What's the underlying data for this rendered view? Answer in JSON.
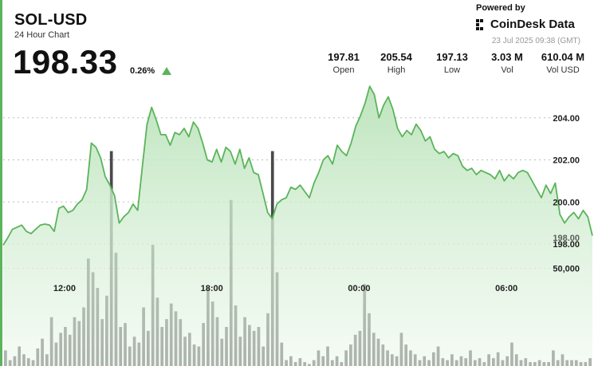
{
  "header": {
    "title": "SOL-USD",
    "subtitle": "24 Hour Chart",
    "price": "198.33",
    "change": "0.26%",
    "change_icon": "triangle-up-icon"
  },
  "branding": {
    "powered_by": "Powered by",
    "brand": "CoinDesk Data",
    "brand_icon": "coindesk-logo-icon",
    "timestamp": "23 Jul 2025 09:38 (GMT)"
  },
  "stats": [
    {
      "value": "197.81",
      "label": "Open"
    },
    {
      "value": "205.54",
      "label": "High"
    },
    {
      "value": "197.13",
      "label": "Low"
    },
    {
      "value": "3.03 M",
      "label": "Vol"
    },
    {
      "value": "610.04 M",
      "label": "Vol USD"
    }
  ],
  "colors": {
    "accent": "#5bb45b",
    "line": "#5bb45b",
    "area_top": "#b9e3b9",
    "volume": "#4a4a4a"
  },
  "chart_data": {
    "type": "area",
    "xlabel": "",
    "ylabel": "",
    "x_ticks": [
      "12:00",
      "18:00",
      "00:00",
      "06:00"
    ],
    "x_tick_hours": [
      2.5,
      8.5,
      14.5,
      20.5
    ],
    "x_range_hours": [
      0,
      24
    ],
    "y_ticks": [
      "204.00",
      "202.00",
      "200.00",
      "198.00"
    ],
    "y_tick_values": [
      204,
      202,
      200,
      198
    ],
    "ylim": [
      195.5,
      206
    ],
    "current_price_label": "198.00",
    "volume_tick": "50,000",
    "volume_tick_value": 50000,
    "volume_max": 120000,
    "grid": true,
    "price_series": {
      "name": "SOL-USD",
      "values": [
        197.95,
        198.3,
        198.7,
        198.8,
        198.9,
        198.6,
        198.5,
        198.7,
        198.9,
        198.95,
        198.9,
        198.6,
        199.7,
        199.8,
        199.5,
        199.6,
        199.9,
        200.1,
        200.6,
        202.8,
        202.6,
        202.1,
        201.2,
        200.8,
        200.3,
        199.0,
        199.3,
        199.5,
        199.9,
        199.6,
        201.7,
        203.7,
        204.5,
        203.9,
        203.2,
        203.2,
        202.7,
        203.3,
        203.2,
        203.5,
        203.1,
        203.8,
        203.5,
        202.8,
        202.0,
        201.9,
        202.5,
        201.9,
        202.6,
        202.4,
        201.8,
        202.5,
        201.6,
        202.1,
        201.4,
        201.3,
        200.4,
        199.5,
        199.2,
        199.9,
        200.1,
        200.2,
        200.7,
        200.6,
        200.8,
        200.5,
        200.2,
        200.9,
        201.4,
        202.0,
        202.2,
        201.8,
        202.7,
        202.4,
        202.2,
        202.8,
        203.6,
        204.1,
        204.7,
        205.5,
        205.1,
        204.0,
        204.6,
        205.0,
        204.4,
        203.5,
        203.1,
        203.4,
        203.2,
        203.7,
        203.4,
        202.9,
        203.1,
        202.5,
        202.3,
        202.4,
        202.1,
        202.3,
        202.2,
        201.7,
        201.5,
        201.6,
        201.3,
        201.5,
        201.4,
        201.3,
        201.1,
        201.5,
        201.0,
        201.3,
        201.1,
        201.4,
        201.5,
        201.4,
        201.0,
        200.6,
        200.2,
        200.8,
        200.4,
        200.9,
        199.4,
        199.0,
        199.3,
        199.5,
        199.2,
        199.6,
        199.3,
        198.4
      ]
    },
    "volume_series": {
      "name": "Vol",
      "values": [
        8000,
        3000,
        5000,
        10000,
        6000,
        4000,
        3000,
        9000,
        14000,
        6000,
        25000,
        12000,
        17000,
        20000,
        16000,
        25000,
        23000,
        30000,
        55000,
        48000,
        40000,
        24000,
        36000,
        110000,
        58000,
        20000,
        22000,
        10000,
        15000,
        12000,
        30000,
        18000,
        62000,
        35000,
        20000,
        24000,
        32000,
        28000,
        24000,
        15000,
        17000,
        11000,
        10000,
        22000,
        40000,
        33000,
        25000,
        14000,
        20000,
        85000,
        31000,
        15000,
        25000,
        21000,
        18000,
        20000,
        10000,
        27000,
        110000,
        48000,
        12000,
        3000,
        5000,
        2000,
        4000,
        2000,
        1000,
        3000,
        8000,
        5000,
        10000,
        3000,
        5000,
        2000,
        8000,
        11000,
        16000,
        18000,
        42000,
        27000,
        17000,
        14000,
        11000,
        8000,
        6000,
        5000,
        17000,
        11000,
        8000,
        6000,
        3000,
        5000,
        3000,
        7000,
        10000,
        4000,
        3000,
        6000,
        3000,
        5000,
        4000,
        8000,
        3000,
        4000,
        2000,
        6000,
        4000,
        7000,
        3000,
        5000,
        12000,
        6000,
        3000,
        4000,
        2000,
        2000,
        3000,
        2000,
        2000,
        8000,
        3000,
        6000,
        3000,
        3000,
        3000,
        2000,
        2000,
        4000
      ]
    }
  }
}
